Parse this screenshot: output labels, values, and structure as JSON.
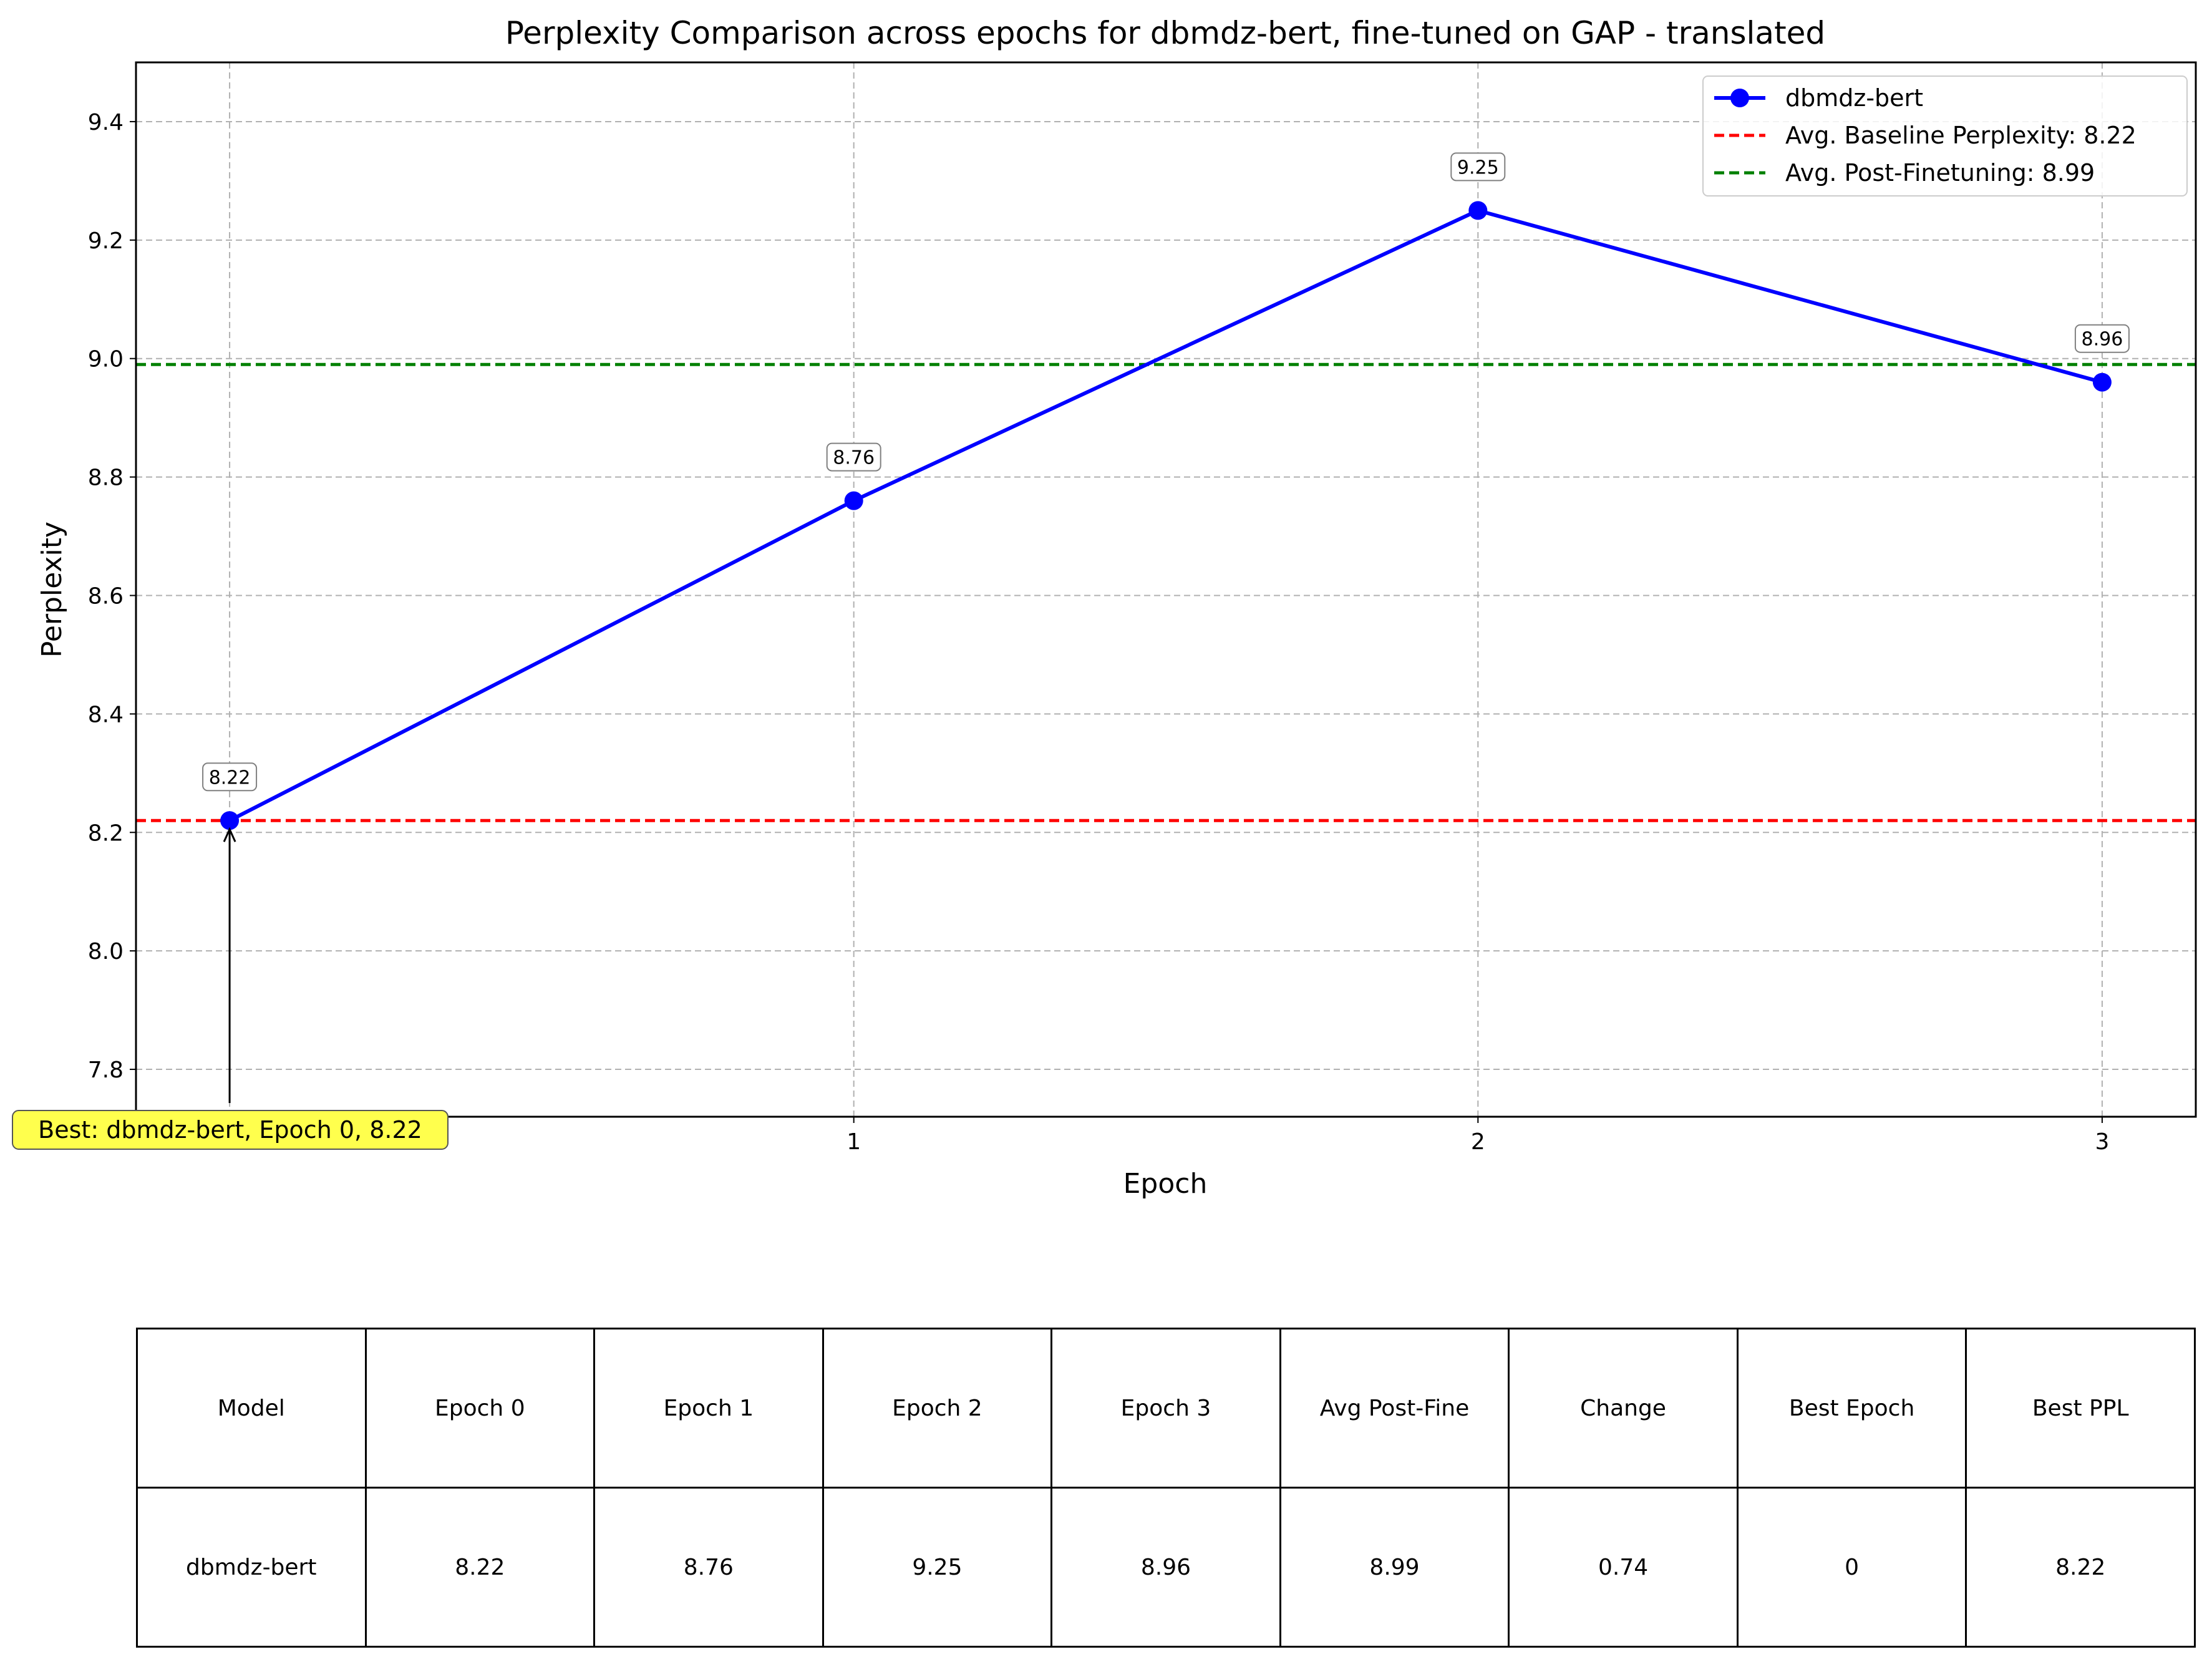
{
  "chart_data": {
    "type": "line",
    "title": "Perplexity Comparison across epochs for dbmdz-bert, fine-tuned on GAP - translated",
    "xlabel": "Epoch",
    "ylabel": "Perplexity",
    "x": [
      0,
      1,
      2,
      3
    ],
    "xticks": [
      "0",
      "1",
      "2",
      "3"
    ],
    "xlim": [
      -0.15,
      3.15
    ],
    "ylim": [
      7.72,
      9.5
    ],
    "yticks": [
      "7.8",
      "8.0",
      "8.2",
      "8.4",
      "8.6",
      "8.8",
      "9.0",
      "9.2",
      "9.4"
    ],
    "grid": true,
    "legend_position": "top-right",
    "series": [
      {
        "name": "dbmdz-bert",
        "values": [
          8.22,
          8.76,
          9.25,
          8.96
        ],
        "labels": [
          "8.22",
          "8.76",
          "9.25",
          "8.96"
        ],
        "color": "#0000ff"
      }
    ],
    "reference_lines": [
      {
        "name": "Avg. Baseline Perplexity: 8.22",
        "value": 8.22,
        "color": "#ff0000",
        "style": "dashed"
      },
      {
        "name": "Avg. Post-Finetuning: 8.99",
        "value": 8.99,
        "color": "#008000",
        "style": "dashed"
      }
    ],
    "annotation": {
      "text": "Best: dbmdz-bert, Epoch 0, 8.22",
      "x": 0,
      "y": 8.22,
      "background": "#ffff4d"
    }
  },
  "table": {
    "headers": [
      "Model",
      "Epoch 0",
      "Epoch 1",
      "Epoch 2",
      "Epoch 3",
      "Avg Post-Fine",
      "Change",
      "Best Epoch",
      "Best PPL"
    ],
    "rows": [
      [
        "dbmdz-bert",
        "8.22",
        "8.76",
        "9.25",
        "8.96",
        "8.99",
        "0.74",
        "0",
        "8.22"
      ]
    ]
  }
}
